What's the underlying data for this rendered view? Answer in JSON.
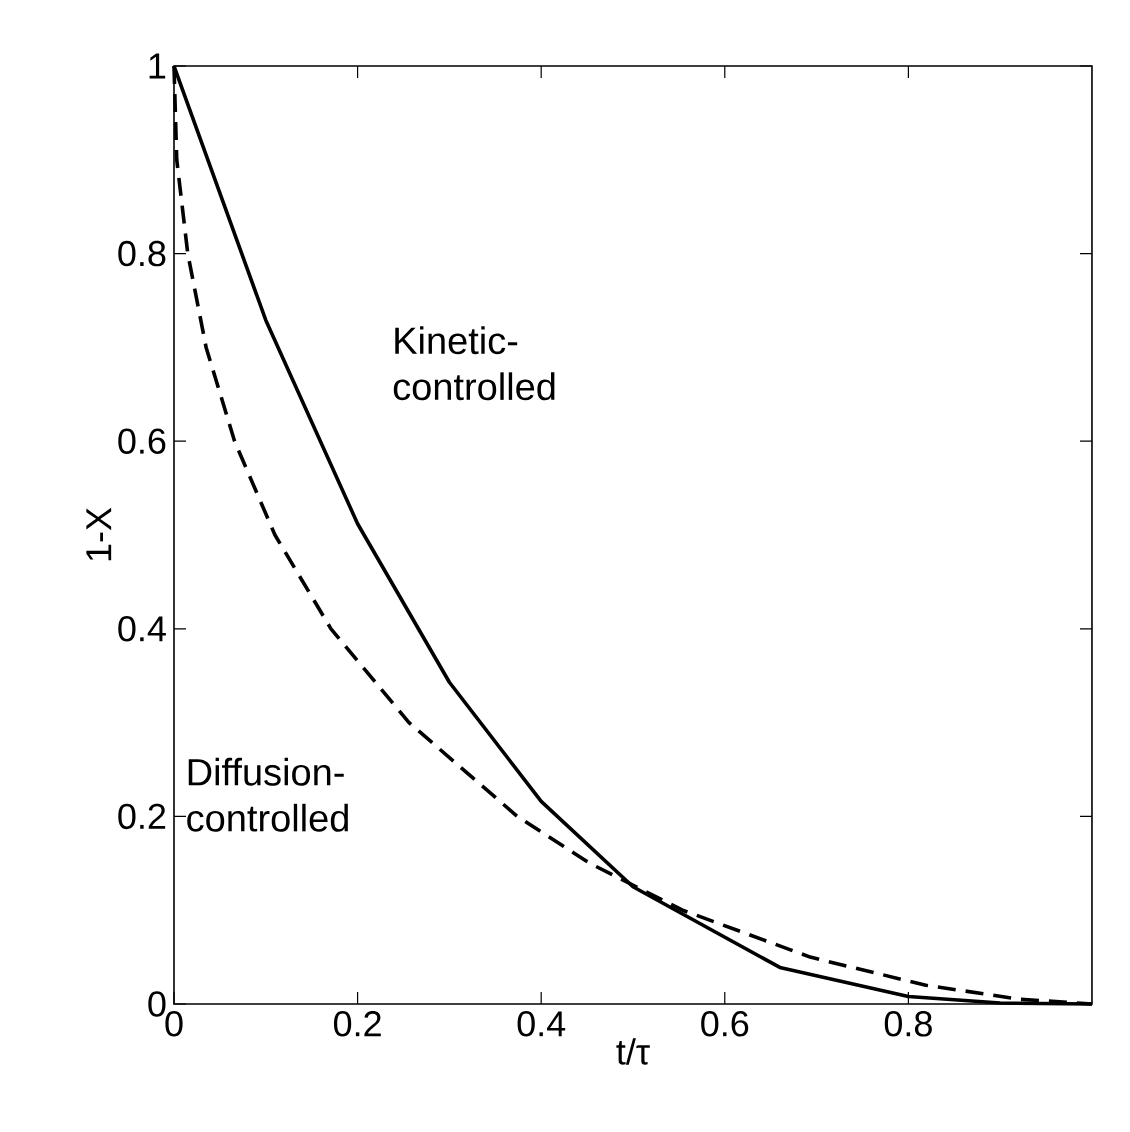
{
  "chart_data": {
    "type": "line",
    "xlabel": "t/τ",
    "ylabel": "1-X",
    "xlim": [
      0,
      1
    ],
    "ylim": [
      0,
      1
    ],
    "xticks": [
      0,
      0.2,
      0.4,
      0.6,
      0.8
    ],
    "yticks": [
      0,
      0.2,
      0.4,
      0.6,
      0.8,
      1
    ],
    "grid": false,
    "marker": "none",
    "annotations": [
      "Kinetic-controlled",
      "Diffusion-controlled"
    ],
    "series": [
      {
        "color": "#000000",
        "line_style": "solid",
        "x": [
          0,
          0.1,
          0.2,
          0.3,
          0.4,
          0.5,
          0.66,
          0.8,
          0.9,
          1
        ],
        "values": [
          1,
          0.729,
          0.512,
          0.343,
          0.216,
          0.125,
          0.039,
          0.008,
          0.001,
          0
        ]
      },
      {
        "color": "#000000",
        "line_style": "dashed",
        "x": [
          0,
          0.003,
          0.015,
          0.035,
          0.066,
          0.11,
          0.171,
          0.256,
          0.374,
          0.453,
          0.554,
          0.693,
          0.819,
          0.922,
          1
        ],
        "values": [
          1,
          0.9,
          0.8,
          0.7,
          0.6,
          0.5,
          0.4,
          0.3,
          0.2,
          0.15,
          0.1,
          0.05,
          0.02,
          0.005,
          0
        ]
      }
    ]
  }
}
